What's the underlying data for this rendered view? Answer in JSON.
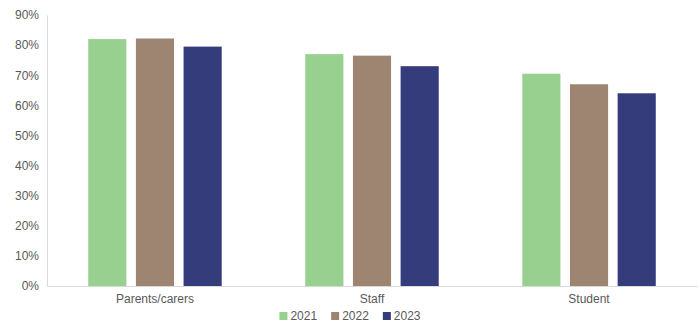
{
  "chart_data": {
    "type": "bar",
    "categories": [
      "Parents/carers",
      "Staff",
      "Student"
    ],
    "series": [
      {
        "name": "2021",
        "color": "#98d08f",
        "values": [
          82,
          77,
          70.5
        ]
      },
      {
        "name": "2022",
        "color": "#9e8572",
        "values": [
          82.2,
          76.5,
          67
        ]
      },
      {
        "name": "2023",
        "color": "#353c7c",
        "values": [
          79.5,
          73,
          64
        ]
      }
    ],
    "ylim": [
      0,
      90
    ],
    "yticks": [
      {
        "value": 0,
        "label": "0%"
      },
      {
        "value": 10,
        "label": "10%"
      },
      {
        "value": 20,
        "label": "20%"
      },
      {
        "value": 30,
        "label": "30%"
      },
      {
        "value": 40,
        "label": "40%"
      },
      {
        "value": 50,
        "label": "50%"
      },
      {
        "value": 60,
        "label": "60%"
      },
      {
        "value": 70,
        "label": "70%"
      },
      {
        "value": 80,
        "label": "80%"
      },
      {
        "value": 90,
        "label": "90%"
      }
    ],
    "grid": false,
    "legend": "bottom"
  }
}
